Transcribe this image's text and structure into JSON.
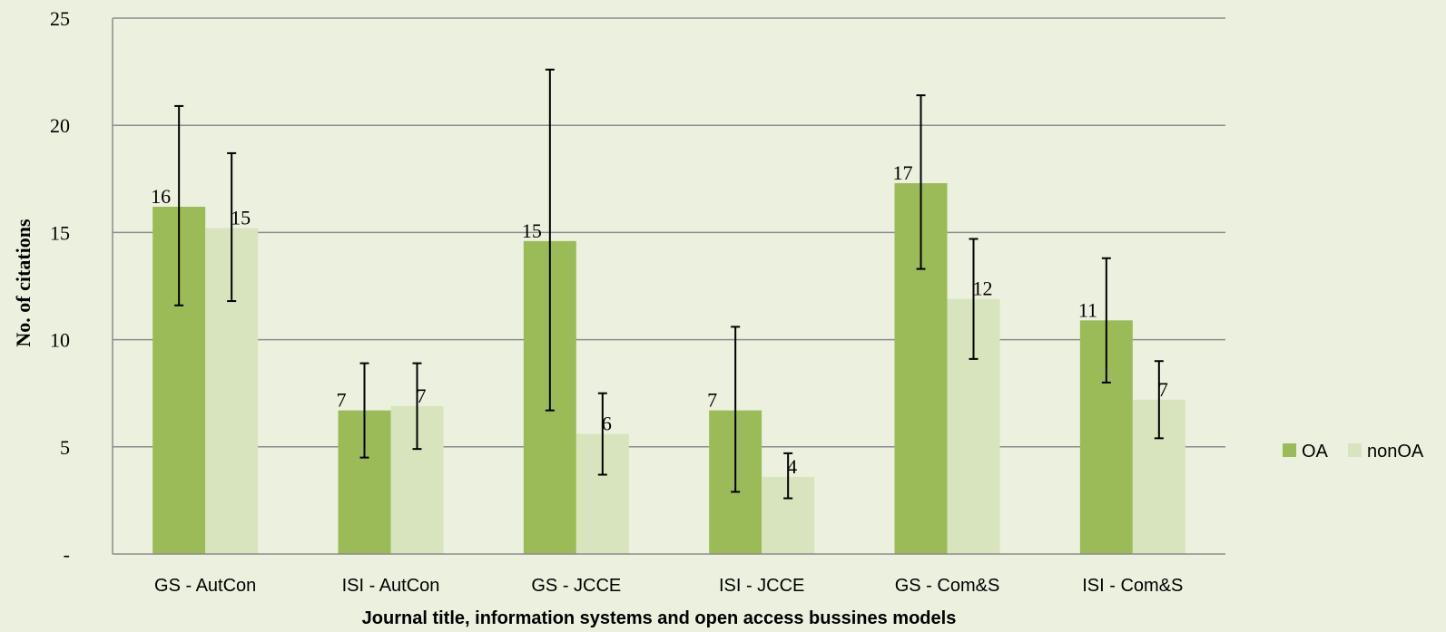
{
  "chart_data": {
    "type": "bar",
    "title": "",
    "xlabel": "Journal title, information systems and open access bussines models",
    "ylabel": "No. of citations",
    "ylim": [
      0,
      25
    ],
    "yticks": [
      0,
      5,
      10,
      15,
      20,
      25
    ],
    "ytick_labels": [
      "-",
      "5",
      "10",
      "15",
      "20",
      "25"
    ],
    "grid": true,
    "legend_position": "right",
    "categories": [
      "GS - AutCon",
      "ISI - AutCon",
      "GS - JCCE",
      "ISI - JCCE",
      "GS - Com&S",
      "ISI - Com&S"
    ],
    "series": [
      {
        "name": "OA",
        "color": "#9bbb59",
        "values": [
          16.2,
          6.7,
          14.6,
          6.7,
          17.3,
          10.9
        ],
        "labels": [
          "16",
          "7",
          "15",
          "7",
          "17",
          "11"
        ],
        "error_low": [
          11.6,
          4.5,
          6.7,
          2.9,
          13.3,
          8.0
        ],
        "error_high": [
          20.9,
          8.9,
          22.6,
          10.6,
          21.4,
          13.8
        ]
      },
      {
        "name": "nonOA",
        "color": "#d7e4bd",
        "values": [
          15.2,
          6.9,
          5.6,
          3.6,
          11.9,
          7.2
        ],
        "labels": [
          "15",
          "7",
          "6",
          "4",
          "12",
          "7"
        ],
        "error_low": [
          11.8,
          4.9,
          3.7,
          2.6,
          9.1,
          5.4
        ],
        "error_high": [
          18.7,
          8.9,
          7.5,
          4.7,
          14.7,
          9.0
        ]
      }
    ]
  }
}
